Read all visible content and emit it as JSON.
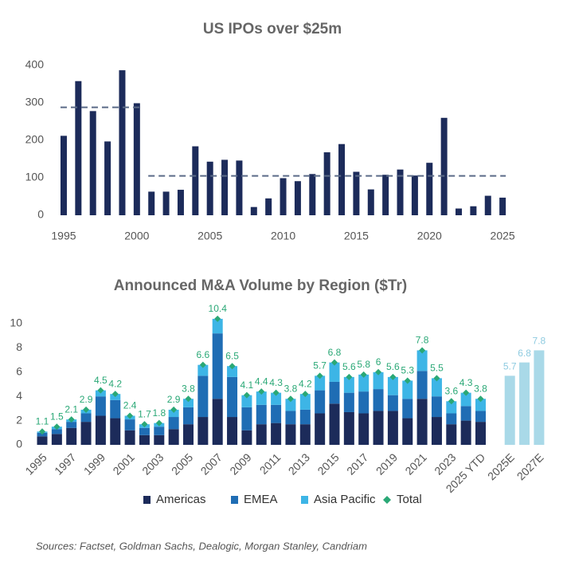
{
  "chart_data": [
    {
      "type": "bar",
      "title": "US IPOs over $25m",
      "x": [
        1995,
        1996,
        1997,
        1998,
        1999,
        2000,
        2001,
        2002,
        2003,
        2004,
        2005,
        2006,
        2007,
        2008,
        2009,
        2010,
        2011,
        2012,
        2013,
        2014,
        2015,
        2016,
        2017,
        2018,
        2019,
        2020,
        2021,
        2022,
        2023,
        2024,
        2025
      ],
      "values": [
        212,
        358,
        278,
        197,
        387,
        299,
        63,
        63,
        68,
        184,
        143,
        148,
        146,
        22,
        45,
        99,
        91,
        110,
        168,
        190,
        116,
        69,
        108,
        122,
        106,
        140,
        260,
        18,
        24,
        52,
        47
      ],
      "color": "#1c2b5a",
      "xlim": [
        1994,
        2026
      ],
      "xticks": [
        1995,
        2000,
        2005,
        2010,
        2015,
        2020,
        2025
      ],
      "ylim": [
        0,
        400
      ],
      "yticks": [
        0,
        100,
        200,
        300,
        400
      ],
      "reference_lines": [
        {
          "value": 288,
          "x": [
            1995,
            2000
          ]
        },
        {
          "value": 105,
          "x": [
            2001,
            2025
          ]
        }
      ],
      "reference_color": "#5b6b88"
    },
    {
      "type": "stacked_bar",
      "title": "Announced M&A Volume by Region ($Tr)",
      "categories": [
        "1995",
        null,
        "1997",
        null,
        "1999",
        null,
        "2001",
        null,
        "2003",
        null,
        "2005",
        null,
        "2007",
        null,
        "2009",
        null,
        "2011",
        null,
        "2013",
        null,
        "2015",
        null,
        "2017",
        null,
        "2019",
        null,
        "2021",
        null,
        "2023",
        null,
        "2025 YTD",
        "2025E",
        null,
        "2027E"
      ],
      "series": [
        {
          "name": "Americas",
          "color": "#1c2b5a",
          "values": [
            0.7,
            0.9,
            1.4,
            1.9,
            2.4,
            2.2,
            1.2,
            0.8,
            0.8,
            1.3,
            1.7,
            2.3,
            3.8,
            2.3,
            1.2,
            1.7,
            1.8,
            1.7,
            1.7,
            2.6,
            3.4,
            2.7,
            2.6,
            2.8,
            2.8,
            2.2,
            3.8,
            2.3,
            1.7,
            2.0,
            1.9,
            null,
            null,
            null
          ]
        },
        {
          "name": "EMEA",
          "color": "#1f6db4",
          "values": [
            0.3,
            0.4,
            0.5,
            0.7,
            1.6,
            1.5,
            0.9,
            0.6,
            0.7,
            1.0,
            1.4,
            3.4,
            5.4,
            3.3,
            1.9,
            1.6,
            1.5,
            1.1,
            1.2,
            1.9,
            1.8,
            1.6,
            1.8,
            1.8,
            1.3,
            1.6,
            2.3,
            1.7,
            0.9,
            1.2,
            0.9,
            null,
            null,
            null
          ]
        },
        {
          "name": "Asia Pacific",
          "color": "#3db5e6",
          "values": [
            0.1,
            0.2,
            0.2,
            0.3,
            0.5,
            0.5,
            0.3,
            0.3,
            0.3,
            0.6,
            0.7,
            0.9,
            1.2,
            0.9,
            1.0,
            1.1,
            1.0,
            1.0,
            1.3,
            1.2,
            1.6,
            1.3,
            1.4,
            1.4,
            1.5,
            1.5,
            1.7,
            1.5,
            1.0,
            1.1,
            1.0,
            null,
            null,
            null
          ]
        },
        {
          "name": "Total",
          "color": "#2aa876",
          "marker": "diamond",
          "values": [
            1.1,
            1.5,
            2.1,
            2.9,
            4.5,
            4.2,
            2.4,
            1.7,
            1.8,
            2.9,
            3.8,
            6.6,
            10.4,
            6.5,
            4.1,
            4.4,
            4.3,
            3.8,
            4.2,
            5.7,
            6.8,
            5.6,
            5.8,
            6.0,
            5.6,
            5.3,
            7.8,
            5.5,
            3.6,
            4.3,
            3.8,
            null,
            null,
            null
          ]
        }
      ],
      "forecast": {
        "color": "#a9d9e8",
        "label_color": "#8ecbe0",
        "values": [
          null,
          null,
          null,
          null,
          null,
          null,
          null,
          null,
          null,
          null,
          null,
          null,
          null,
          null,
          null,
          null,
          null,
          null,
          null,
          null,
          null,
          null,
          null,
          null,
          null,
          null,
          null,
          null,
          null,
          null,
          null,
          5.7,
          6.8,
          7.8
        ]
      },
      "ylim": [
        0,
        11
      ],
      "yticks": [
        0,
        2,
        4,
        6,
        8,
        10
      ]
    }
  ],
  "source": "Sources: Factset, Goldman Sachs, Dealogic, Morgan Stanley, Candriam"
}
